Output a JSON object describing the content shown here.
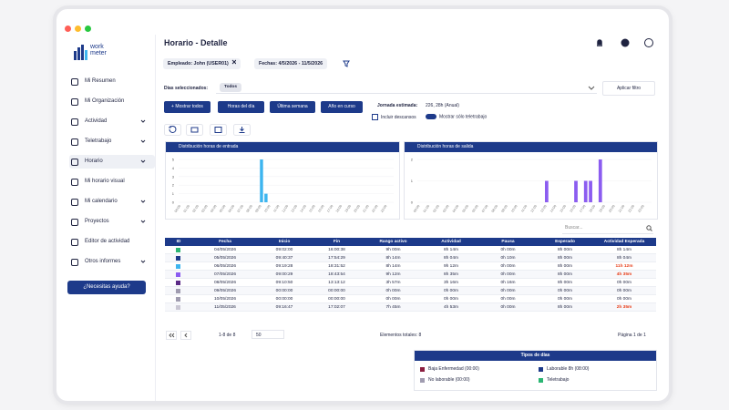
{
  "sidebar": {
    "logo": [
      "work",
      "meter"
    ],
    "nav": [
      {
        "label": "Mi Resumen"
      },
      {
        "label": "Mi Organización"
      },
      {
        "label": "Actividad",
        "expandable": true
      },
      {
        "label": "Teletrabajo",
        "expandable": true
      },
      {
        "label": "Horario",
        "expandable": true,
        "active": true
      },
      {
        "label": "Mi horario visual"
      },
      {
        "label": "Mi calendario",
        "expandable": true
      },
      {
        "label": "Proyectos",
        "expandable": true
      },
      {
        "label": "Editor de actividad"
      },
      {
        "label": "Otros informes",
        "expandable": true
      }
    ],
    "help": "¿Necesitas ayuda?"
  },
  "header": {
    "title": "Horario - Detalle"
  },
  "filters": {
    "employee": "Empleado: John (USER01)",
    "dates": "Fechas: 4/5/2026 - 11/5/2026",
    "days_label": "Días seleccionados:",
    "days_chip": "Todos",
    "apply": "Aplicar filtro"
  },
  "actions": {
    "buttons": [
      "+ Mostrar todos",
      "Horas del día",
      "Última semana",
      "Año en curso"
    ],
    "estimate_label": "Jornada estimada:",
    "estimate_value": "226, 28h (Anual)",
    "include_breaks": "Incluir descansos",
    "only_remote": "Mostrar sólo teletrabajo"
  },
  "chart_data": [
    {
      "type": "bar",
      "title": "Distribución horas de entrada",
      "color": "#3db5ef",
      "categories": [
        "00:00",
        null,
        "01:00",
        null,
        "02:00",
        null,
        "03:00",
        null,
        "04:00",
        null,
        "05:00",
        null,
        "06:00",
        null,
        "07:00",
        null,
        "08:00",
        null,
        "09:00",
        null,
        "10:00",
        null,
        "11:00",
        null,
        "12:00",
        null,
        "13:00",
        null,
        "14:00",
        null,
        "15:00",
        null,
        "16:00",
        null,
        "17:00",
        null,
        "18:00",
        null,
        "19:00",
        null,
        "20:00",
        null,
        "21:00",
        null,
        "22:00",
        null,
        "23:00",
        null
      ],
      "values": [
        0,
        0,
        0,
        0,
        0,
        0,
        0,
        0,
        0,
        0,
        0,
        0,
        0,
        0,
        0,
        0,
        0,
        0,
        5,
        1,
        0,
        0,
        0,
        0,
        0,
        0,
        0,
        0,
        0,
        0,
        0,
        0,
        0,
        0,
        0,
        0,
        0,
        0,
        0,
        0,
        0,
        0,
        0,
        0,
        0,
        0,
        0,
        0
      ],
      "ylim": [
        0,
        5
      ],
      "yticks": [
        0,
        1,
        2,
        3,
        4,
        5
      ],
      "grid": true
    },
    {
      "type": "bar",
      "title": "Distribución horas de salida",
      "color": "#8b5cf0",
      "categories": [
        "00:00",
        null,
        "01:00",
        null,
        "02:00",
        null,
        "03:00",
        null,
        "04:00",
        null,
        "05:00",
        null,
        "06:00",
        null,
        "07:00",
        null,
        "08:00",
        null,
        "09:00",
        null,
        "10:00",
        null,
        "11:00",
        null,
        "12:00",
        null,
        "13:00",
        null,
        "14:00",
        null,
        "15:00",
        null,
        "16:00",
        null,
        "17:00",
        null,
        "18:00",
        null,
        "19:00",
        null,
        "20:00",
        null,
        "21:00",
        null,
        "22:00",
        null,
        "23:00",
        null
      ],
      "values": [
        0,
        0,
        0,
        0,
        0,
        0,
        0,
        0,
        0,
        0,
        0,
        0,
        0,
        0,
        0,
        0,
        0,
        0,
        0,
        0,
        0,
        0,
        0,
        0,
        0,
        0,
        1,
        0,
        0,
        0,
        0,
        0,
        1,
        0,
        1,
        1,
        0,
        2,
        0,
        0,
        0,
        0,
        0,
        0,
        0,
        0,
        0,
        0
      ],
      "ylim": [
        0,
        2
      ],
      "yticks": [
        0,
        1,
        2
      ],
      "grid": true
    }
  ],
  "table": {
    "search": "Buscar...",
    "columns": [
      "ID",
      "Fecha",
      "Inicio",
      "Fin",
      "Rango activo",
      "Actividad",
      "Pausa",
      "Esperado",
      "Actividad Esperada"
    ],
    "rows": [
      {
        "color": "#2bb673",
        "cells": [
          "04/05/2026",
          "09:02:00",
          "16:00:38",
          "9h 00m",
          "8h 14m",
          "0h 00m",
          "8h 00m",
          "8h 14m"
        ]
      },
      {
        "color": "#1d3a8a",
        "cells": [
          "05/05/2026",
          "09:40:37",
          "17:54:29",
          "8h 14m",
          "8h 04m",
          "0h 10m",
          "8h 00m",
          "8h 04m"
        ]
      },
      {
        "color": "#3db5ef",
        "cells": [
          "06/05/2026",
          "09:19:28",
          "18:31:52",
          "8h 14m",
          "9h 12m",
          "0h 00m",
          "8h 00m",
          "11h 12m"
        ],
        "last_color": "#e8401c"
      },
      {
        "color": "#8b5cf0",
        "cells": [
          "07/05/2026",
          "09:00:29",
          "18:43:54",
          "9h 12m",
          "8h 35m",
          "0h 00m",
          "8h 00m",
          "4h 35m"
        ],
        "last_color": "#e8401c"
      },
      {
        "color": "#5b2a86",
        "cells": [
          "08/05/2026",
          "09:10:50",
          "13:13:12",
          "3h 57m",
          "3h 16m",
          "0h 16m",
          "8h 00m",
          "0h 00m"
        ]
      },
      {
        "color": "#a09cb0",
        "cells": [
          "09/05/2026",
          "00:00:00",
          "00:00:00",
          "0h 00m",
          "0h 00m",
          "0h 00m",
          "0h 00m",
          "0h 00m"
        ]
      },
      {
        "color": "#a09cb0",
        "cells": [
          "10/05/2026",
          "00:00:00",
          "00:00:00",
          "0h 00m",
          "0h 00m",
          "0h 00m",
          "0h 00m",
          "0h 00m"
        ]
      },
      {
        "color": "#c9c6d3",
        "cells": [
          "11/05/2026",
          "09:16:47",
          "17:02:07",
          "7h 45m",
          "4h 53m",
          "0h 00m",
          "8h 00m",
          "2h 35m"
        ],
        "last_color": "#e8401c"
      }
    ]
  },
  "pagination": {
    "range": "1-8 de 8",
    "page_size": "50",
    "total": "Elementos totales: 8",
    "page": "Página 1 de 1"
  },
  "legend": {
    "title": "Tipos de días",
    "items": [
      {
        "label": "Baja Enfermedad (00:00)",
        "color": "#8b1e3f"
      },
      {
        "label": "Laborable 8h (08:00)",
        "color": "#1d3a8a"
      },
      {
        "label": "No laborable (00:00)",
        "color": "#a09cb0"
      },
      {
        "label": "Teletrabajo",
        "color": "#2bb673"
      }
    ]
  }
}
